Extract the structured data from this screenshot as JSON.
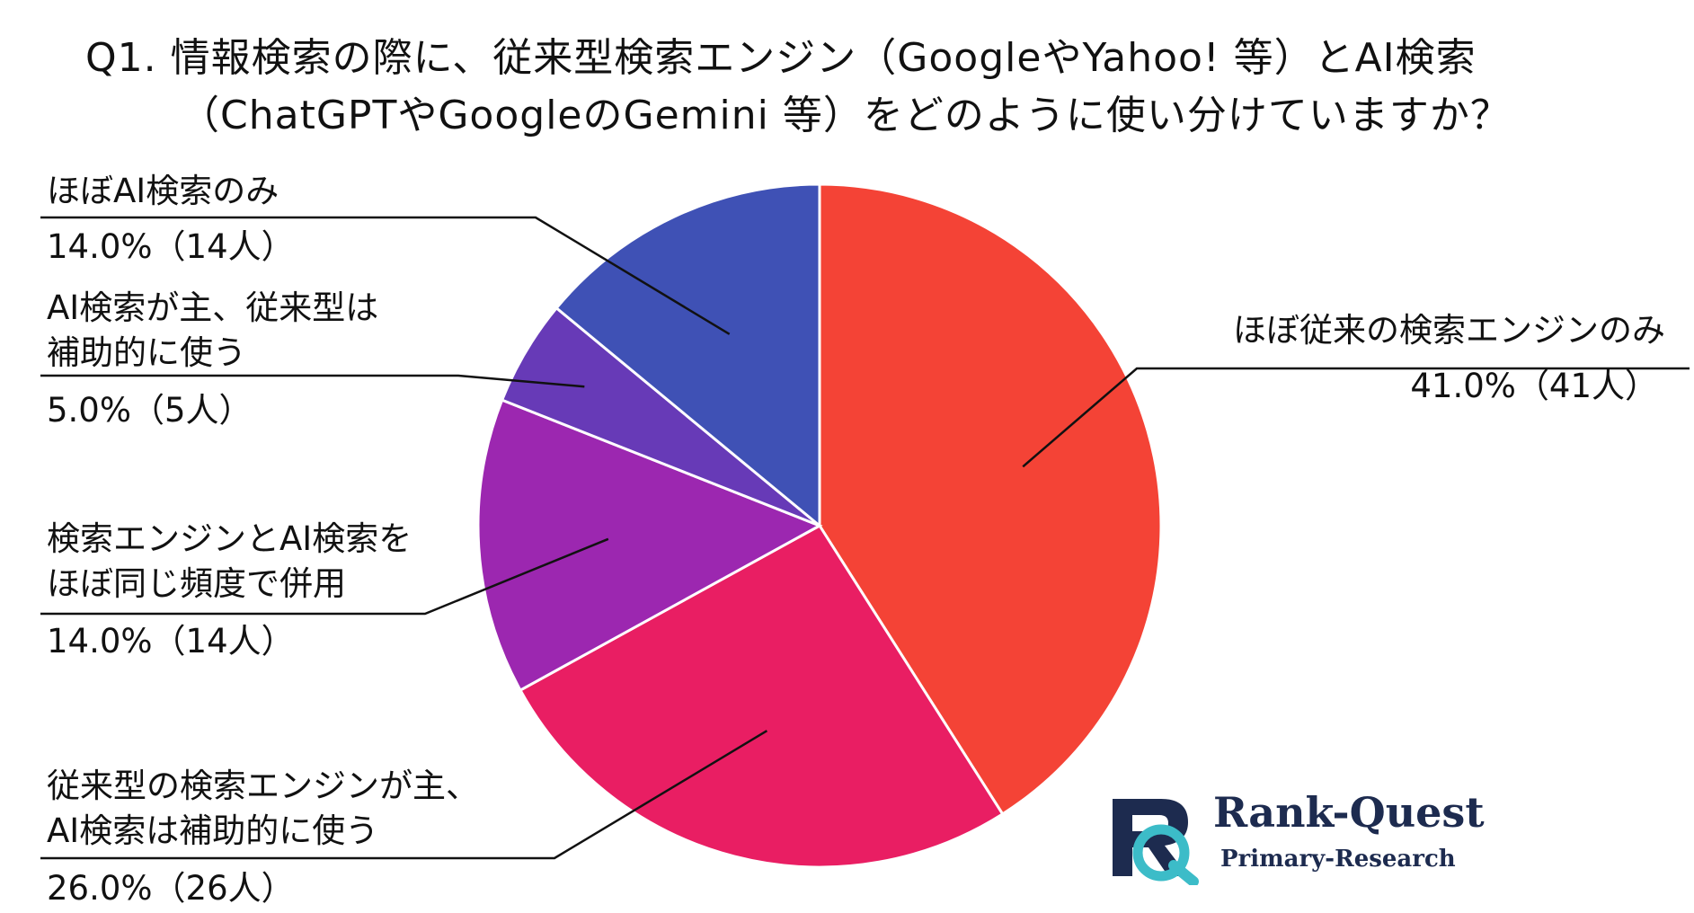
{
  "chart_data": {
    "type": "pie",
    "title_lines": [
      "Q1. 情報検索の際に、従来型検索エンジン（GoogleやYahoo! 等）とAI検索",
      "（ChatGPTやGoogleのGemini 等）をどのように使い分けていますか？"
    ],
    "slices": [
      {
        "label_lines": [
          "ほぼ従来の検索エンジンのみ"
        ],
        "value": 41.0,
        "value_text": "41.0%（41人）",
        "color": "#f44336"
      },
      {
        "label_lines": [
          "従来型の検索エンジンが主、",
          "AI検索は補助的に使う"
        ],
        "value": 26.0,
        "value_text": "26.0%（26人）",
        "color": "#e91e63"
      },
      {
        "label_lines": [
          "検索エンジンとAI検索を",
          "ほぼ同じ頻度で併用"
        ],
        "value": 14.0,
        "value_text": "14.0%（14人）",
        "color": "#9c27b0"
      },
      {
        "label_lines": [
          "AI検索が主、従来型は",
          "補助的に使う"
        ],
        "value": 5.0,
        "value_text": "5.0%（5人）",
        "color": "#673ab7"
      },
      {
        "label_lines": [
          "ほぼAI検索のみ"
        ],
        "value": 14.0,
        "value_text": "14.0%（14人）",
        "color": "#3f51b5"
      }
    ],
    "start_angle_deg": 0,
    "direction": "clockwise",
    "legend": "none",
    "labels": "outside-with-leader-lines"
  },
  "logo": {
    "name": "Rank-Quest",
    "subtitle": "Primary-Research",
    "mark_letter": "R",
    "primary_color": "#1d2b4f",
    "accent_color": "#3cbcc8"
  }
}
